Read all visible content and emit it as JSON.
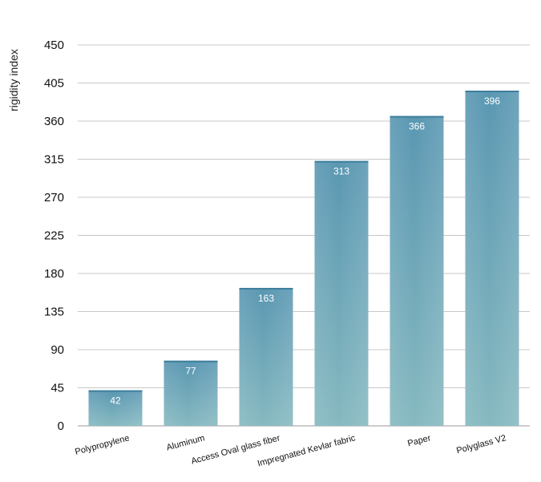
{
  "chart_data": {
    "type": "bar",
    "title": "",
    "xlabel": "",
    "ylabel": "rigidity index",
    "categories": [
      "Polypropylene",
      "Aluminum",
      "Access Oval glass fiber",
      "Impregnated Kevlar fabric",
      "Paper",
      "Polyglass V2"
    ],
    "values": [
      42,
      77,
      163,
      313,
      366,
      396
    ],
    "ylim": [
      0,
      450
    ],
    "yticks": [
      0,
      45,
      90,
      135,
      180,
      225,
      270,
      315,
      360,
      405,
      450
    ],
    "grid": true,
    "legend": "none",
    "colors": {
      "bar_top": "#5a97b2",
      "bar_bottom": "#86b9c0",
      "grid": "#c8c8c8",
      "axis": "#9a9a9a"
    }
  }
}
